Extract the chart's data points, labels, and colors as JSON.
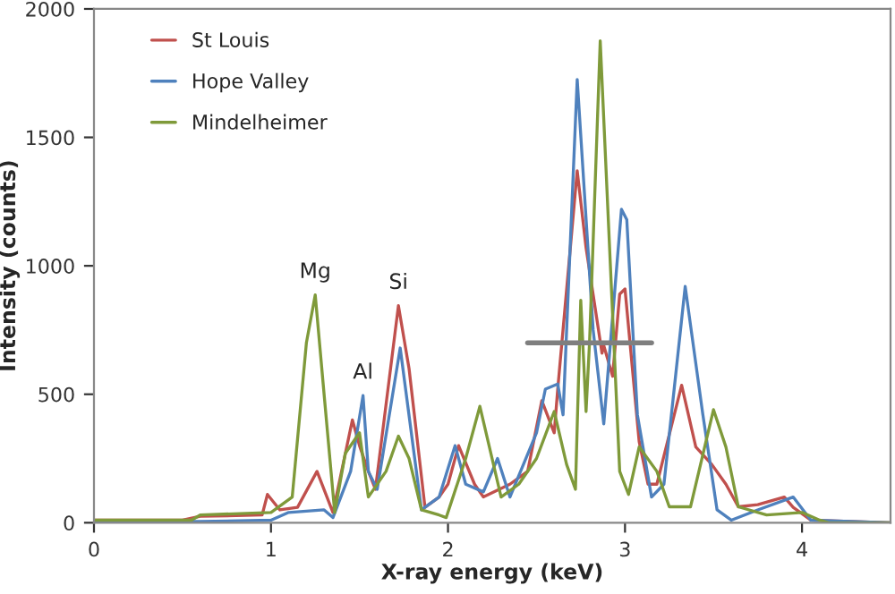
{
  "chart_data": {
    "type": "line",
    "xlabel": "X-ray energy (keV)",
    "ylabel": "Intensity (counts)",
    "xlim": [
      0,
      4.5
    ],
    "xticks": [
      0,
      1,
      2,
      3,
      4
    ],
    "ylim": [
      0,
      2000
    ],
    "yticks": [
      0,
      500,
      1000,
      1500,
      2000
    ],
    "grid": false,
    "legend": "top left",
    "marker": "none",
    "line_style": "solid",
    "annotations": [
      {
        "text": "Mg",
        "x": 1.25,
        "y": 887
      },
      {
        "text": "Al",
        "x": 1.52,
        "y": 495
      },
      {
        "text": "Si",
        "x": 1.72,
        "y": 845
      }
    ],
    "series": [
      {
        "name": "St Louis",
        "color": "#c0504d",
        "x": [
          0,
          0.5,
          0.6,
          0.95,
          0.98,
          1.05,
          1.15,
          1.26,
          1.35,
          1.46,
          1.5,
          1.55,
          1.59,
          1.72,
          1.78,
          1.87,
          1.95,
          2.0,
          2.06,
          2.15,
          2.2,
          2.35,
          2.45,
          2.53,
          2.6,
          2.62,
          2.73,
          2.78,
          2.87,
          2.88,
          2.93,
          2.97,
          3.0,
          3.08,
          3.13,
          3.18,
          3.32,
          3.4,
          3.49,
          3.57,
          3.64,
          3.75,
          3.9,
          3.95,
          4.05,
          4.5
        ],
        "values": [
          10,
          10,
          25,
          30,
          110,
          50,
          60,
          200,
          40,
          400,
          300,
          200,
          130,
          845,
          600,
          60,
          100,
          150,
          300,
          150,
          100,
          150,
          200,
          475,
          350,
          520,
          1370,
          1070,
          660,
          690,
          570,
          890,
          910,
          316,
          150,
          150,
          535,
          295,
          227,
          150,
          62,
          70,
          100,
          60,
          10,
          0
        ]
      },
      {
        "name": "Hope Valley",
        "color": "#4f81bd",
        "x": [
          0,
          0.6,
          1.0,
          1.1,
          1.3,
          1.35,
          1.45,
          1.52,
          1.55,
          1.6,
          1.73,
          1.85,
          1.95,
          2.04,
          2.1,
          2.2,
          2.28,
          2.35,
          2.5,
          2.55,
          2.62,
          2.65,
          2.73,
          2.82,
          2.88,
          2.98,
          3.01,
          3.07,
          3.15,
          3.22,
          3.34,
          3.44,
          3.52,
          3.6,
          3.75,
          3.95,
          4.05,
          4.5
        ],
        "values": [
          5,
          5,
          10,
          40,
          50,
          20,
          200,
          495,
          200,
          130,
          680,
          50,
          100,
          300,
          150,
          120,
          250,
          100,
          350,
          520,
          540,
          420,
          1725,
          750,
          385,
          1220,
          1180,
          420,
          100,
          150,
          920,
          420,
          50,
          10,
          50,
          100,
          10,
          0
        ]
      },
      {
        "name": "Mindelheimer",
        "color": "#7f9a3a",
        "x": [
          0,
          0.55,
          0.6,
          1.0,
          1.12,
          1.2,
          1.25,
          1.3,
          1.36,
          1.42,
          1.5,
          1.55,
          1.65,
          1.72,
          1.78,
          1.85,
          1.95,
          1.99,
          2.1,
          2.18,
          2.3,
          2.4,
          2.5,
          2.6,
          2.67,
          2.72,
          2.75,
          2.78,
          2.8,
          2.86,
          2.97,
          3.02,
          3.08,
          3.18,
          3.25,
          3.37,
          3.5,
          3.57,
          3.64,
          3.8,
          4.0,
          4.1,
          4.15,
          4.5
        ],
        "values": [
          10,
          10,
          30,
          40,
          100,
          700,
          887,
          500,
          40,
          270,
          350,
          100,
          200,
          337,
          250,
          50,
          30,
          20,
          250,
          453,
          100,
          150,
          250,
          433,
          227,
          130,
          866,
          433,
          708,
          1876,
          200,
          110,
          295,
          200,
          62,
          62,
          440,
          295,
          62,
          30,
          40,
          10,
          0,
          0
        ]
      },
      {
        "color": "#7f7f7f",
        "x": [
          2.45,
          3.15
        ],
        "values": [
          700,
          700
        ]
      }
    ]
  }
}
